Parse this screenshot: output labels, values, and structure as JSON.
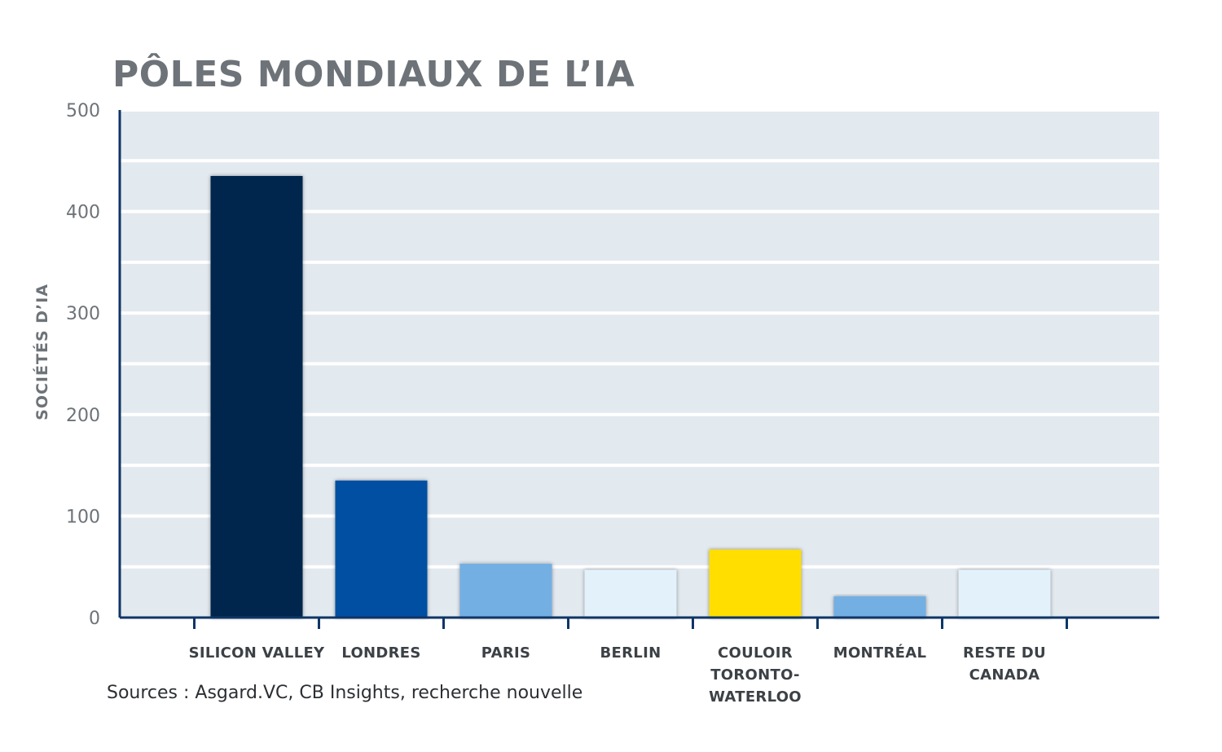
{
  "chart_data": {
    "type": "bar",
    "title": "PÔLES MONDIAUX DE L’IA",
    "ylabel": "SOCIÉTÉS D’IA",
    "xlabel": "",
    "ylim": [
      0,
      500
    ],
    "yticks": [
      0,
      100,
      200,
      300,
      400,
      500
    ],
    "grid": true,
    "categories": [
      [
        "SILICON VALLEY"
      ],
      [
        "LONDRES"
      ],
      [
        "PARIS"
      ],
      [
        "BERLIN"
      ],
      [
        "COULOIR",
        "TORONTO-",
        "WATERLOO"
      ],
      [
        "MONTRÉAL"
      ],
      [
        "RESTE DU",
        "CANADA"
      ]
    ],
    "values": [
      435,
      135,
      53,
      47,
      67,
      21,
      47
    ],
    "bar_colors": [
      "#00264d",
      "#004fa3",
      "#73afe3",
      "#e3f1fb",
      "#ffde00",
      "#73afe3",
      "#e3f1fb"
    ],
    "plot_background": "#e2e9ef",
    "grid_color": "#ffffff",
    "axis_color": "#0f3566",
    "text_color": "#6d7378"
  },
  "source": "Sources : Asgard.VC, CB Insights, recherche nouvelle"
}
